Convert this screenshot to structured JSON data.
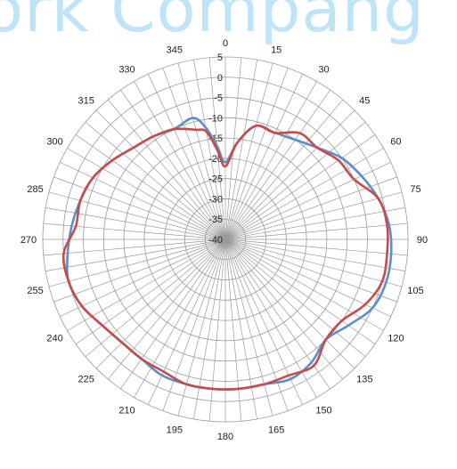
{
  "watermark": "ork Compang",
  "chart_data": {
    "type": "polar-line",
    "theta_direction": "clockwise",
    "theta_zero": "top",
    "angle_labels": [
      0,
      15,
      30,
      45,
      60,
      75,
      90,
      105,
      120,
      135,
      150,
      165,
      180,
      195,
      210,
      225,
      240,
      255,
      270,
      285,
      300,
      315,
      330,
      345
    ],
    "r_ticks": [
      5,
      0,
      -5,
      -10,
      -15,
      -20,
      -25,
      -30,
      -35,
      -40
    ],
    "r_range": [
      -40,
      5
    ],
    "grid": true,
    "series": [
      {
        "color": "#5b8fc9",
        "theta": [
          0,
          7,
          15,
          25,
          35,
          45,
          55,
          65,
          75,
          85,
          95,
          105,
          115,
          125,
          135,
          145,
          155,
          165,
          175,
          185,
          195,
          205,
          215,
          225,
          235,
          245,
          255,
          265,
          275,
          285,
          295,
          305,
          315,
          325,
          335,
          345,
          350,
          355
        ],
        "values": [
          -21,
          -16,
          -11,
          -11,
          -10,
          -8,
          -5,
          -3,
          -1,
          0.5,
          1,
          1,
          0,
          -3,
          -5,
          -3,
          -2,
          -3,
          -3,
          -3,
          -3,
          -3,
          -4,
          -4,
          -3,
          -1,
          0,
          -1,
          -2,
          -3,
          -4,
          -6,
          -8,
          -9,
          -10,
          -9,
          -12,
          -17
        ]
      },
      {
        "color": "#c84b4b",
        "theta": [
          0,
          7,
          15,
          25,
          35,
          45,
          55,
          65,
          75,
          85,
          95,
          105,
          115,
          125,
          135,
          145,
          155,
          165,
          175,
          185,
          195,
          205,
          215,
          225,
          235,
          245,
          255,
          265,
          275,
          285,
          295,
          305,
          315,
          325,
          335,
          345,
          350,
          355
        ],
        "values": [
          -22,
          -16,
          -11,
          -11,
          -8,
          -8,
          -6,
          -5,
          -1,
          0,
          0,
          0,
          -2,
          -5,
          -5,
          -2,
          -3,
          -3,
          -3,
          -3,
          -3,
          -4,
          -4,
          -4,
          -3,
          -1,
          0,
          0,
          -3,
          -3,
          -4,
          -6,
          -8,
          -9,
          -10,
          -12,
          -13,
          -18
        ]
      }
    ]
  }
}
